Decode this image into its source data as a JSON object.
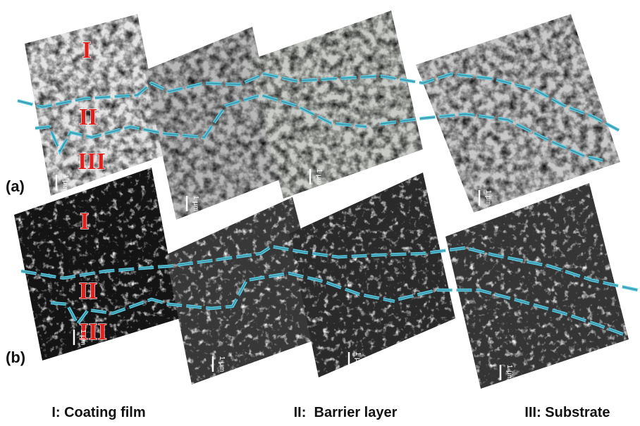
{
  "panels": [
    {
      "label": "(a)",
      "zones": [
        "I",
        "II",
        "III"
      ],
      "scale_labels": [
        "1 μm",
        "1 μm",
        "1 μm",
        "1 μm"
      ]
    },
    {
      "label": "(b)",
      "zones": [
        "I",
        "II",
        "III"
      ],
      "scale_labels": [
        "1 μm",
        "1 μm",
        "1 μm",
        "1 μm"
      ]
    }
  ],
  "legend": [
    "I: Coating film",
    "II:  Barrier layer",
    "III: Substrate"
  ]
}
